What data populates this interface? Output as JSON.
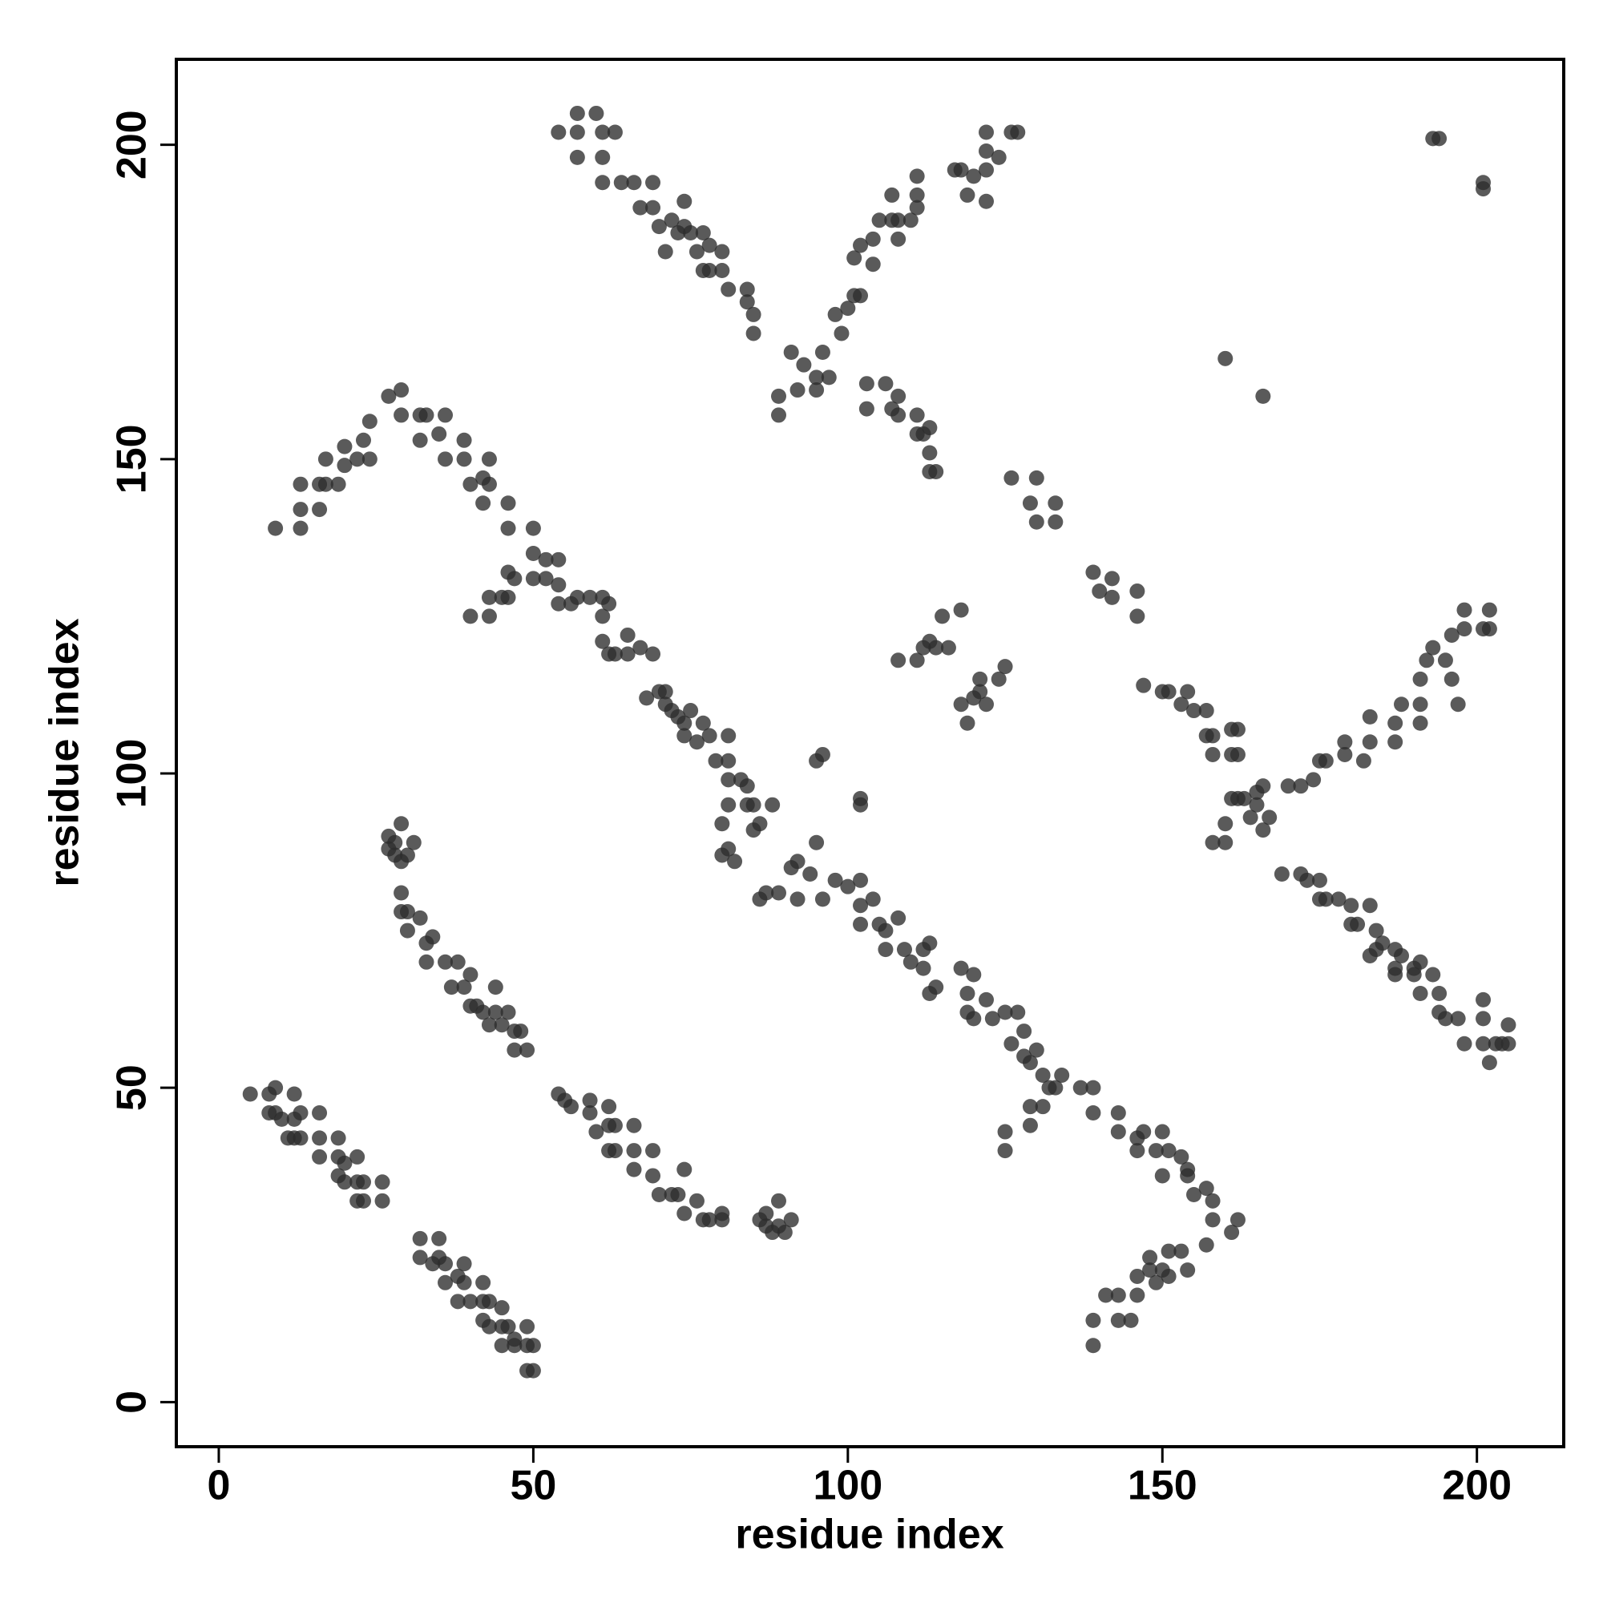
{
  "chart_data": {
    "type": "scatter",
    "x_label": "residue index",
    "y_label": "residue index",
    "xlim": [
      -6.75,
      213.8
    ],
    "ylim": [
      -7.1,
      213.6
    ],
    "xticks": [
      0,
      50,
      100,
      150,
      200
    ],
    "yticks": [
      0,
      50,
      100,
      150,
      200
    ],
    "color": "#2b2b2b",
    "x": [
      5,
      8,
      9,
      8,
      9,
      10,
      12,
      12,
      13,
      11,
      12,
      13,
      16,
      16,
      16,
      19,
      19,
      20,
      19,
      20,
      22,
      22,
      23,
      22,
      23,
      26,
      26,
      32,
      35,
      32,
      34,
      35,
      36,
      36,
      38,
      39,
      39,
      38,
      40,
      42,
      42,
      43,
      42,
      43,
      45,
      45,
      46,
      47,
      45,
      47,
      49,
      49,
      50,
      49,
      50,
      54,
      55,
      56,
      59,
      59,
      60,
      62,
      62,
      63,
      62,
      63,
      66,
      66,
      66,
      69,
      69,
      70,
      72,
      73,
      74,
      74,
      76,
      77,
      78,
      80,
      80,
      86,
      87,
      87,
      89,
      89,
      90,
      91,
      88,
      27,
      28,
      29,
      27,
      28,
      29,
      31,
      30,
      29,
      30,
      29,
      30,
      32,
      33,
      33,
      34,
      36,
      37,
      38,
      39,
      40,
      40,
      41,
      42,
      44,
      44,
      43,
      45,
      46,
      47,
      47,
      48,
      49,
      9,
      13,
      13,
      13,
      16,
      16,
      17,
      17,
      19,
      20,
      20,
      22,
      23,
      24,
      24,
      27,
      29,
      29,
      32,
      32,
      33,
      35,
      36,
      36,
      39,
      39,
      40,
      42,
      42,
      43,
      43,
      46,
      46,
      40,
      43,
      43,
      45,
      46,
      46,
      47,
      50,
      50,
      50,
      52,
      52,
      54,
      54,
      54,
      56,
      57,
      59,
      61,
      61,
      62,
      61,
      62,
      63,
      65,
      65,
      67,
      69,
      70,
      68,
      71,
      71,
      72,
      73,
      74,
      75,
      74,
      76,
      77,
      78,
      79,
      81,
      81,
      81,
      81,
      83,
      84,
      84,
      85,
      85,
      86,
      88,
      80,
      81,
      82,
      80,
      86,
      87,
      89,
      92,
      91,
      92,
      94,
      95,
      96,
      98,
      100,
      102,
      102,
      102,
      104,
      105,
      106,
      106,
      108,
      109,
      110,
      112,
      113,
      113,
      114,
      112,
      118,
      119,
      120,
      119,
      120,
      122,
      123,
      125,
      126,
      127,
      128,
      128,
      129,
      130,
      131,
      132,
      133,
      134,
      137,
      125,
      125,
      129,
      129,
      131,
      139,
      139,
      143,
      143,
      146,
      146,
      147,
      149,
      150,
      150,
      151,
      153,
      154,
      155,
      154,
      157,
      158,
      158,
      162,
      161,
      139,
      139,
      141,
      143,
      143,
      146,
      146,
      148,
      148,
      149,
      150,
      151,
      151,
      153,
      154,
      157,
      145,
      89,
      89,
      91,
      92,
      93,
      95,
      95,
      96,
      97,
      98,
      99,
      100,
      101,
      101,
      102,
      102,
      104,
      104,
      105,
      107,
      107,
      108,
      108,
      110,
      111,
      111,
      111,
      117,
      118,
      119,
      120,
      122,
      122,
      122,
      122,
      124,
      126,
      127,
      54,
      57,
      57,
      57,
      60,
      61,
      61,
      61,
      63,
      64,
      66,
      67,
      69,
      69,
      70,
      71,
      72,
      73,
      74,
      74,
      75,
      77,
      76,
      77,
      78,
      78,
      80,
      80,
      84,
      84,
      85,
      85,
      81,
      103,
      103,
      106,
      107,
      108,
      108,
      111,
      111,
      112,
      113,
      113,
      114,
      113,
      126,
      129,
      130,
      130,
      133,
      133,
      139,
      140,
      142,
      142,
      146,
      146,
      108,
      111,
      112,
      113,
      114,
      115,
      116,
      118,
      118,
      119,
      120,
      121,
      121,
      122,
      124,
      125,
      147,
      150,
      151,
      153,
      154,
      155,
      157,
      157,
      158,
      158,
      161,
      161,
      162,
      162,
      160,
      160,
      158,
      161,
      162,
      163,
      164,
      165,
      166,
      166,
      167,
      165,
      170,
      172,
      174,
      175,
      176,
      179,
      179,
      182,
      183,
      183,
      187,
      187,
      188,
      191,
      191,
      191,
      192,
      193,
      195,
      196,
      196,
      197,
      198,
      198,
      201,
      202,
      202,
      169,
      172,
      173,
      175,
      175,
      176,
      178,
      180,
      180,
      181,
      183,
      184,
      184,
      183,
      185,
      187,
      187,
      187,
      188,
      190,
      190,
      191,
      191,
      193,
      194,
      194,
      195,
      197,
      198,
      201,
      201,
      201,
      202,
      203,
      204,
      205,
      205,
      95,
      96,
      102,
      102,
      160,
      166,
      193,
      194,
      201,
      201
    ],
    "y": [
      49,
      49,
      50,
      46,
      46,
      45,
      49,
      45,
      46,
      42,
      42,
      42,
      46,
      42,
      39,
      42,
      39,
      38,
      36,
      35,
      39,
      35,
      35,
      32,
      32,
      35,
      32,
      26,
      26,
      23,
      22,
      23,
      22,
      19,
      20,
      22,
      19,
      16,
      16,
      19,
      16,
      16,
      13,
      12,
      15,
      12,
      12,
      10,
      9,
      9,
      12,
      9,
      9,
      5,
      5,
      49,
      48,
      47,
      48,
      46,
      43,
      47,
      44,
      44,
      40,
      40,
      44,
      40,
      37,
      40,
      36,
      33,
      33,
      33,
      37,
      30,
      32,
      29,
      29,
      30,
      29,
      29,
      28,
      30,
      32,
      28,
      27,
      29,
      27,
      90,
      89,
      92,
      88,
      87,
      86,
      89,
      87,
      81,
      78,
      78,
      75,
      77,
      73,
      70,
      74,
      70,
      66,
      70,
      66,
      68,
      63,
      63,
      62,
      62,
      66,
      60,
      60,
      62,
      59,
      56,
      59,
      56,
      139,
      139,
      142,
      146,
      142,
      146,
      150,
      146,
      146,
      149,
      152,
      150,
      153,
      150,
      156,
      160,
      161,
      157,
      157,
      153,
      157,
      154,
      157,
      150,
      150,
      153,
      146,
      147,
      143,
      150,
      146,
      143,
      139,
      125,
      125,
      128,
      128,
      132,
      128,
      131,
      135,
      131,
      139,
      131,
      134,
      130,
      134,
      127,
      127,
      128,
      128,
      128,
      125,
      127,
      121,
      119,
      119,
      122,
      119,
      120,
      119,
      113,
      112,
      111,
      113,
      110,
      109,
      108,
      110,
      106,
      105,
      108,
      106,
      102,
      102,
      106,
      99,
      95,
      99,
      98,
      95,
      95,
      91,
      92,
      95,
      87,
      88,
      86,
      92,
      80,
      81,
      81,
      86,
      85,
      80,
      84,
      89,
      80,
      83,
      82,
      83,
      79,
      76,
      80,
      76,
      75,
      72,
      77,
      72,
      70,
      69,
      73,
      65,
      66,
      72,
      69,
      65,
      68,
      62,
      61,
      64,
      61,
      62,
      57,
      62,
      59,
      55,
      54,
      56,
      52,
      50,
      50,
      52,
      50,
      43,
      40,
      47,
      44,
      47,
      50,
      46,
      46,
      43,
      42,
      40,
      43,
      40,
      36,
      43,
      40,
      39,
      37,
      33,
      36,
      34,
      29,
      32,
      29,
      27,
      9,
      13,
      17,
      13,
      17,
      17,
      20,
      21,
      23,
      19,
      21,
      24,
      20,
      24,
      21,
      25,
      13,
      160,
      157,
      167,
      161,
      165,
      163,
      161,
      167,
      163,
      173,
      170,
      174,
      176,
      182,
      184,
      176,
      181,
      185,
      188,
      188,
      192,
      188,
      185,
      188,
      195,
      190,
      192,
      196,
      196,
      192,
      195,
      191,
      196,
      199,
      202,
      198,
      202,
      202,
      202,
      205,
      202,
      198,
      205,
      202,
      198,
      194,
      202,
      194,
      194,
      190,
      194,
      190,
      187,
      183,
      188,
      186,
      191,
      187,
      186,
      186,
      183,
      180,
      184,
      180,
      180,
      183,
      177,
      175,
      173,
      170,
      177,
      162,
      158,
      162,
      158,
      160,
      157,
      157,
      154,
      154,
      151,
      148,
      148,
      155,
      147,
      143,
      147,
      140,
      143,
      140,
      132,
      129,
      131,
      128,
      129,
      125,
      118,
      118,
      120,
      121,
      120,
      125,
      120,
      126,
      111,
      108,
      112,
      113,
      115,
      111,
      115,
      117,
      114,
      113,
      113,
      111,
      113,
      110,
      110,
      106,
      103,
      106,
      103,
      107,
      103,
      107,
      92,
      89,
      89,
      96,
      96,
      96,
      93,
      97,
      98,
      91,
      93,
      95,
      98,
      98,
      99,
      102,
      102,
      103,
      105,
      102,
      105,
      109,
      108,
      105,
      111,
      111,
      108,
      115,
      118,
      120,
      118,
      122,
      115,
      111,
      123,
      126,
      123,
      126,
      123,
      84,
      84,
      83,
      83,
      80,
      80,
      80,
      79,
      76,
      76,
      79,
      75,
      72,
      71,
      73,
      72,
      69,
      68,
      71,
      69,
      68,
      70,
      65,
      68,
      65,
      62,
      61,
      61,
      57,
      64,
      61,
      57,
      54,
      57,
      57,
      57,
      60,
      102,
      103,
      96,
      95,
      166,
      160,
      201,
      201,
      194,
      193
    ]
  }
}
